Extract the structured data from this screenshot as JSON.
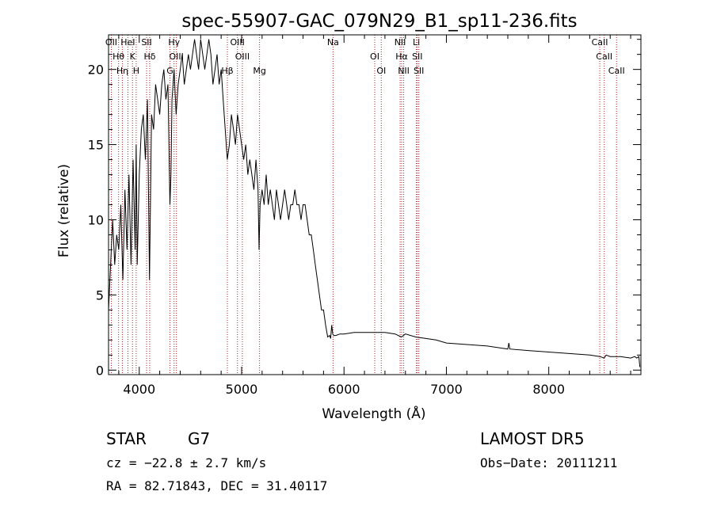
{
  "chart_data": {
    "type": "line",
    "title": "spec-55907-GAC_079N29_B1_sp11-236.fits",
    "xlabel": "Wavelength (Å)",
    "ylabel": "Flux (relative)",
    "xlim": [
      3700,
      8900
    ],
    "ylim": [
      -0.3,
      22.3
    ],
    "xticks": [
      4000,
      5000,
      6000,
      7000,
      8000
    ],
    "yticks": [
      0,
      5,
      10,
      15,
      20
    ],
    "grid": false,
    "line_colors": {
      "spectrum": "#000000",
      "markers": "#b22222"
    },
    "series": [
      {
        "x": [
          3700,
          3740,
          3760,
          3780,
          3800,
          3820,
          3840,
          3860,
          3880,
          3900,
          3920,
          3940,
          3960,
          3970,
          3980,
          4000,
          4020,
          4040,
          4060,
          4080,
          4100,
          4120,
          4140,
          4160,
          4180,
          4200,
          4220,
          4240,
          4260,
          4280,
          4300,
          4310,
          4320,
          4340,
          4360,
          4380,
          4400,
          4420,
          4440,
          4460,
          4480,
          4500,
          4520,
          4540,
          4560,
          4580,
          4600,
          4620,
          4640,
          4660,
          4680,
          4700,
          4720,
          4740,
          4760,
          4780,
          4800,
          4820,
          4840,
          4860,
          4880,
          4900,
          4920,
          4940,
          4960,
          4980,
          5000,
          5020,
          5040,
          5060,
          5080,
          5100,
          5120,
          5140,
          5160,
          5170,
          5180,
          5200,
          5220,
          5240,
          5260,
          5280,
          5300,
          5320,
          5340,
          5360,
          5380,
          5400,
          5420,
          5440,
          5460,
          5480,
          5500,
          5520,
          5540,
          5560,
          5580,
          5600,
          5620,
          5640,
          5660,
          5680,
          5700,
          5720,
          5740,
          5760,
          5780,
          5800,
          5820,
          5840,
          5860,
          5870,
          5880,
          5890,
          5900,
          5920,
          5960,
          6000,
          6100,
          6200,
          6300,
          6400,
          6500,
          6560,
          6600,
          6700,
          6800,
          6900,
          7000,
          7200,
          7400,
          7600,
          7610,
          7620,
          7800,
          8000,
          8200,
          8400,
          8500,
          8540,
          8560,
          8600,
          8660,
          8700,
          8800,
          8840,
          8860,
          8880,
          8890
        ],
        "y": [
          4,
          10,
          7,
          9,
          8,
          11,
          6,
          12,
          8,
          13,
          7,
          14,
          8,
          15,
          7,
          13,
          16,
          17,
          14,
          18,
          6,
          17,
          16,
          19,
          18,
          17,
          19,
          20,
          18,
          19,
          11,
          13,
          18,
          20,
          17,
          19,
          20,
          21,
          19,
          20,
          21,
          20,
          21,
          22,
          21,
          20,
          22,
          21,
          20,
          21,
          22,
          21,
          19,
          20,
          21,
          19,
          20,
          18,
          16,
          14,
          15,
          17,
          16,
          15,
          17,
          16,
          15,
          14,
          15,
          13,
          14,
          13,
          12,
          14,
          12,
          8,
          11,
          12,
          11,
          13,
          11,
          12,
          11,
          10,
          12,
          11,
          10,
          11,
          12,
          11,
          10,
          11,
          11,
          12,
          11,
          11,
          10,
          11,
          11,
          10,
          9,
          9,
          8,
          7,
          6,
          5,
          4,
          4,
          3,
          2.2,
          2.3,
          2.1,
          3,
          2.4,
          2.3,
          2.3,
          2.4,
          2.4,
          2.5,
          2.5,
          2.5,
          2.5,
          2.4,
          2.2,
          2.4,
          2.2,
          2.1,
          2.0,
          1.8,
          1.7,
          1.6,
          1.4,
          1.8,
          1.4,
          1.3,
          1.2,
          1.1,
          1.0,
          0.9,
          0.8,
          1.0,
          0.9,
          0.9,
          0.9,
          0.8,
          0.9,
          0.8,
          0.9,
          0.2
        ]
      }
    ],
    "lines": [
      {
        "x": 3727,
        "label": "OII"
      },
      {
        "x": 3798,
        "label": "Hθ"
      },
      {
        "x": 3835,
        "label": "Hη"
      },
      {
        "x": 3889,
        "label": "HeI"
      },
      {
        "x": 3934,
        "label": "K"
      },
      {
        "x": 3970,
        "label": "H"
      },
      {
        "x": 4072,
        "label": "SII"
      },
      {
        "x": 4102,
        "label": "Hδ"
      },
      {
        "x": 4300,
        "label": "G"
      },
      {
        "x": 4340,
        "label": "Hγ"
      },
      {
        "x": 4363,
        "label": "OIII"
      },
      {
        "x": 4861,
        "label": "Hβ"
      },
      {
        "x": 4959,
        "label": "OIII"
      },
      {
        "x": 5007,
        "label": "OIII"
      },
      {
        "x": 5175,
        "label": "Mg"
      },
      {
        "x": 5893,
        "label": "Na"
      },
      {
        "x": 6300,
        "label": "OI"
      },
      {
        "x": 6364,
        "label": "OI"
      },
      {
        "x": 6548,
        "label": "NII"
      },
      {
        "x": 6563,
        "label": "Hα"
      },
      {
        "x": 6583,
        "label": "NII"
      },
      {
        "x": 6707,
        "label": "Li"
      },
      {
        "x": 6716,
        "label": "SII"
      },
      {
        "x": 6731,
        "label": "SII"
      },
      {
        "x": 8498,
        "label": "CaII"
      },
      {
        "x": 8542,
        "label": "CaII"
      },
      {
        "x": 8662,
        "label": "CaII"
      }
    ]
  },
  "info": {
    "class": "STAR",
    "subclass": "G7",
    "survey": "LAMOST DR5",
    "cz": "cz = −22.8 ± 2.7 km/s",
    "obs_date": "Obs−Date: 20111211",
    "coords": "RA =  82.71843, DEC =  31.40117"
  }
}
